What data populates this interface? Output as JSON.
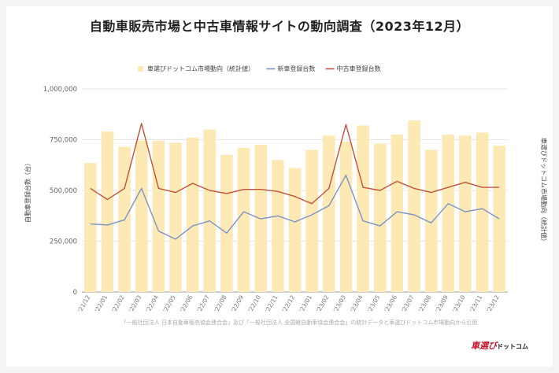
{
  "title": "自動車販売市場と中古車情報サイトの動向調査（2023年12月）",
  "source_note": "「一般社団法人 日本自動車販売協会連合会」及び「一般社団法人 全国軽自動車協会連合会」の統計データと車選びドットコム市場動向から引用",
  "brand": {
    "main": "車選び",
    "suffix": "ドットコム"
  },
  "colors": {
    "bar": "#fde9b4",
    "new_line": "#7b93c6",
    "used_line": "#c0533d",
    "grid": "#e6e6e6"
  },
  "chart_data": {
    "type": "bar",
    "title": "自動車販売市場と中古車情報サイトの動向調査（2023年12月）",
    "categories": [
      "'21/12",
      "'22/01",
      "'22/02",
      "'22/03",
      "'22/04",
      "'22/05",
      "'22/06",
      "'22/07",
      "'22/08",
      "'22/09",
      "'22/10",
      "'22/11",
      "'22/12",
      "'23/01",
      "'23/02",
      "'23/03",
      "'23/04",
      "'23/05",
      "'23/06",
      "'23/07",
      "'23/08",
      "'23/09",
      "'23/10",
      "'23/11",
      "'23/12"
    ],
    "ylabel": "自動車登録台数（台）",
    "y2label": "車選びドットコム市場動向（統計値）",
    "ylim": [
      0,
      1000000
    ],
    "yticks": [
      "0",
      "250,000",
      "500,000",
      "750,000",
      "1,000,000"
    ],
    "grid": true,
    "legend_position": "top-left",
    "series": [
      {
        "name": "車選びドットコム市場動向（統計値）",
        "type": "bar",
        "axis": "right",
        "values": [
          635000,
          790000,
          715000,
          745000,
          745000,
          735000,
          760000,
          800000,
          675000,
          710000,
          725000,
          650000,
          610000,
          700000,
          770000,
          740000,
          820000,
          730000,
          775000,
          845000,
          700000,
          775000,
          770000,
          785000,
          720000
        ]
      },
      {
        "name": "新車登録台数",
        "type": "line",
        "values": [
          335000,
          330000,
          355000,
          510000,
          300000,
          260000,
          325000,
          350000,
          290000,
          395000,
          360000,
          375000,
          345000,
          380000,
          425000,
          575000,
          350000,
          325000,
          395000,
          380000,
          340000,
          435000,
          395000,
          410000,
          360000
        ]
      },
      {
        "name": "中古車登録台数",
        "type": "line",
        "values": [
          510000,
          455000,
          510000,
          830000,
          510000,
          490000,
          535000,
          500000,
          485000,
          505000,
          505000,
          495000,
          470000,
          435000,
          510000,
          825000,
          515000,
          500000,
          545000,
          510000,
          490000,
          515000,
          540000,
          515000,
          515000
        ]
      }
    ]
  }
}
